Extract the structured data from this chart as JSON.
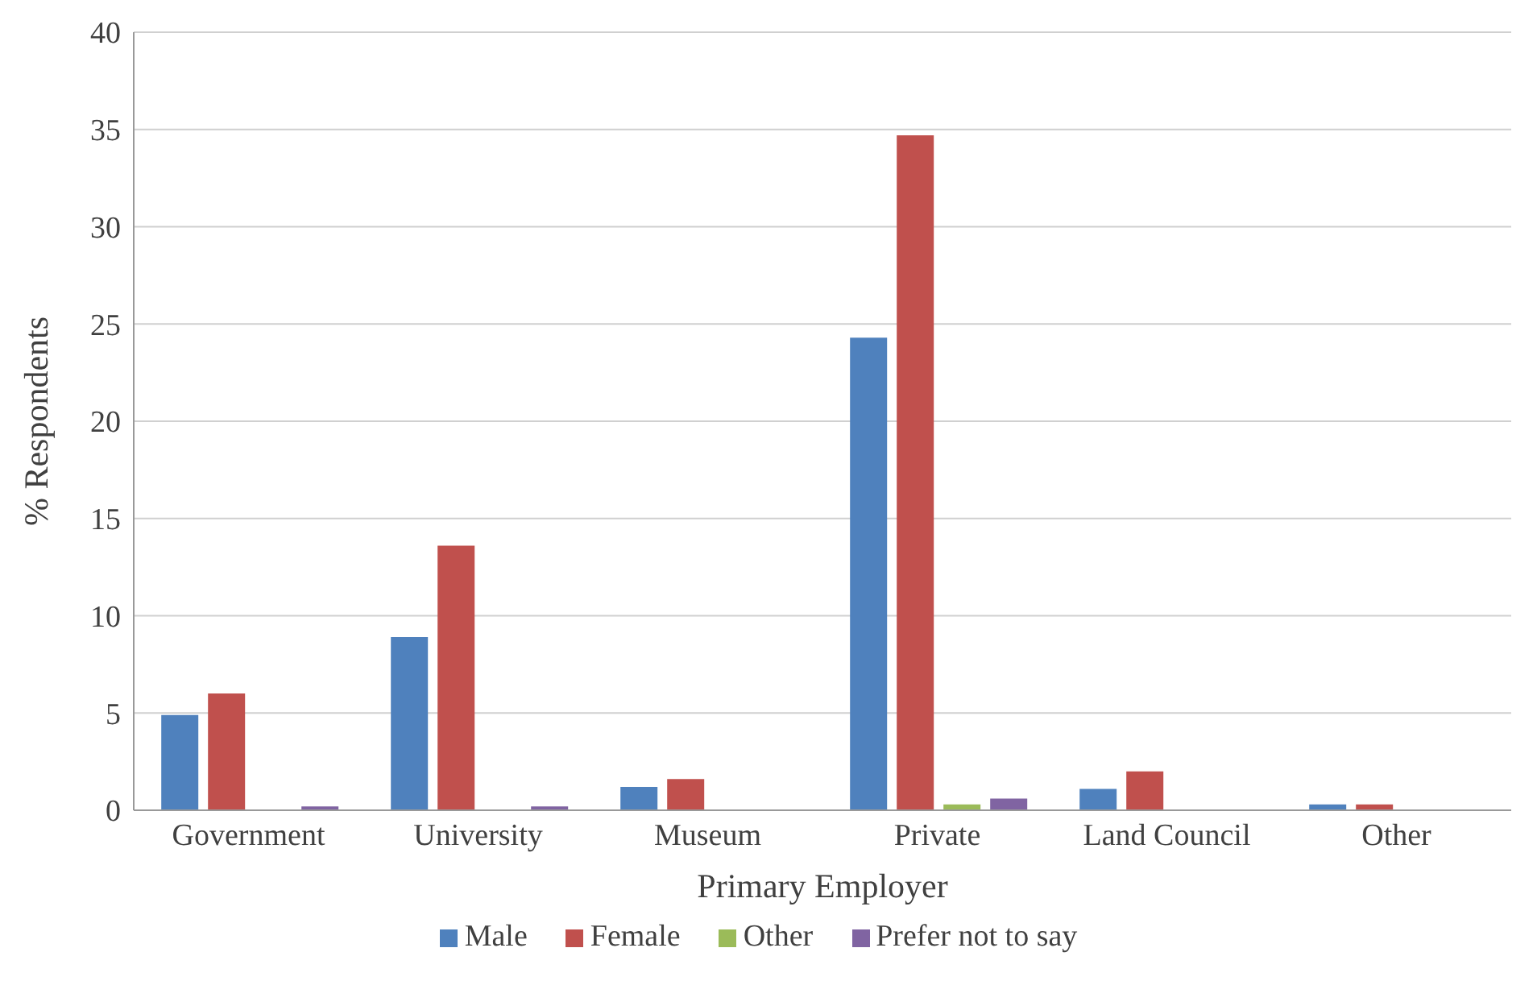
{
  "chart_data": {
    "type": "bar",
    "xlabel": "Primary Employer",
    "ylabel": "% Respondents",
    "categories": [
      "Government",
      "University",
      "Museum",
      "Private",
      "Land Council",
      "Other"
    ],
    "series": [
      {
        "name": "Male",
        "color": "#4f81bd",
        "values": [
          4.9,
          8.9,
          1.2,
          24.3,
          1.1,
          0.3
        ]
      },
      {
        "name": "Female",
        "color": "#c0504d",
        "values": [
          6.0,
          13.6,
          1.6,
          34.7,
          2.0,
          0.3
        ]
      },
      {
        "name": "Other",
        "color": "#9bbb59",
        "values": [
          0,
          0,
          0,
          0.3,
          0,
          0
        ]
      },
      {
        "name": "Prefer not to say",
        "color": "#8064a2",
        "values": [
          0.2,
          0.2,
          0,
          0.6,
          0,
          0
        ]
      }
    ],
    "ylim": [
      0,
      40
    ],
    "yticks": [
      0,
      5,
      10,
      15,
      20,
      25,
      30,
      35,
      40
    ],
    "grid": "y",
    "legend": "bottom"
  }
}
